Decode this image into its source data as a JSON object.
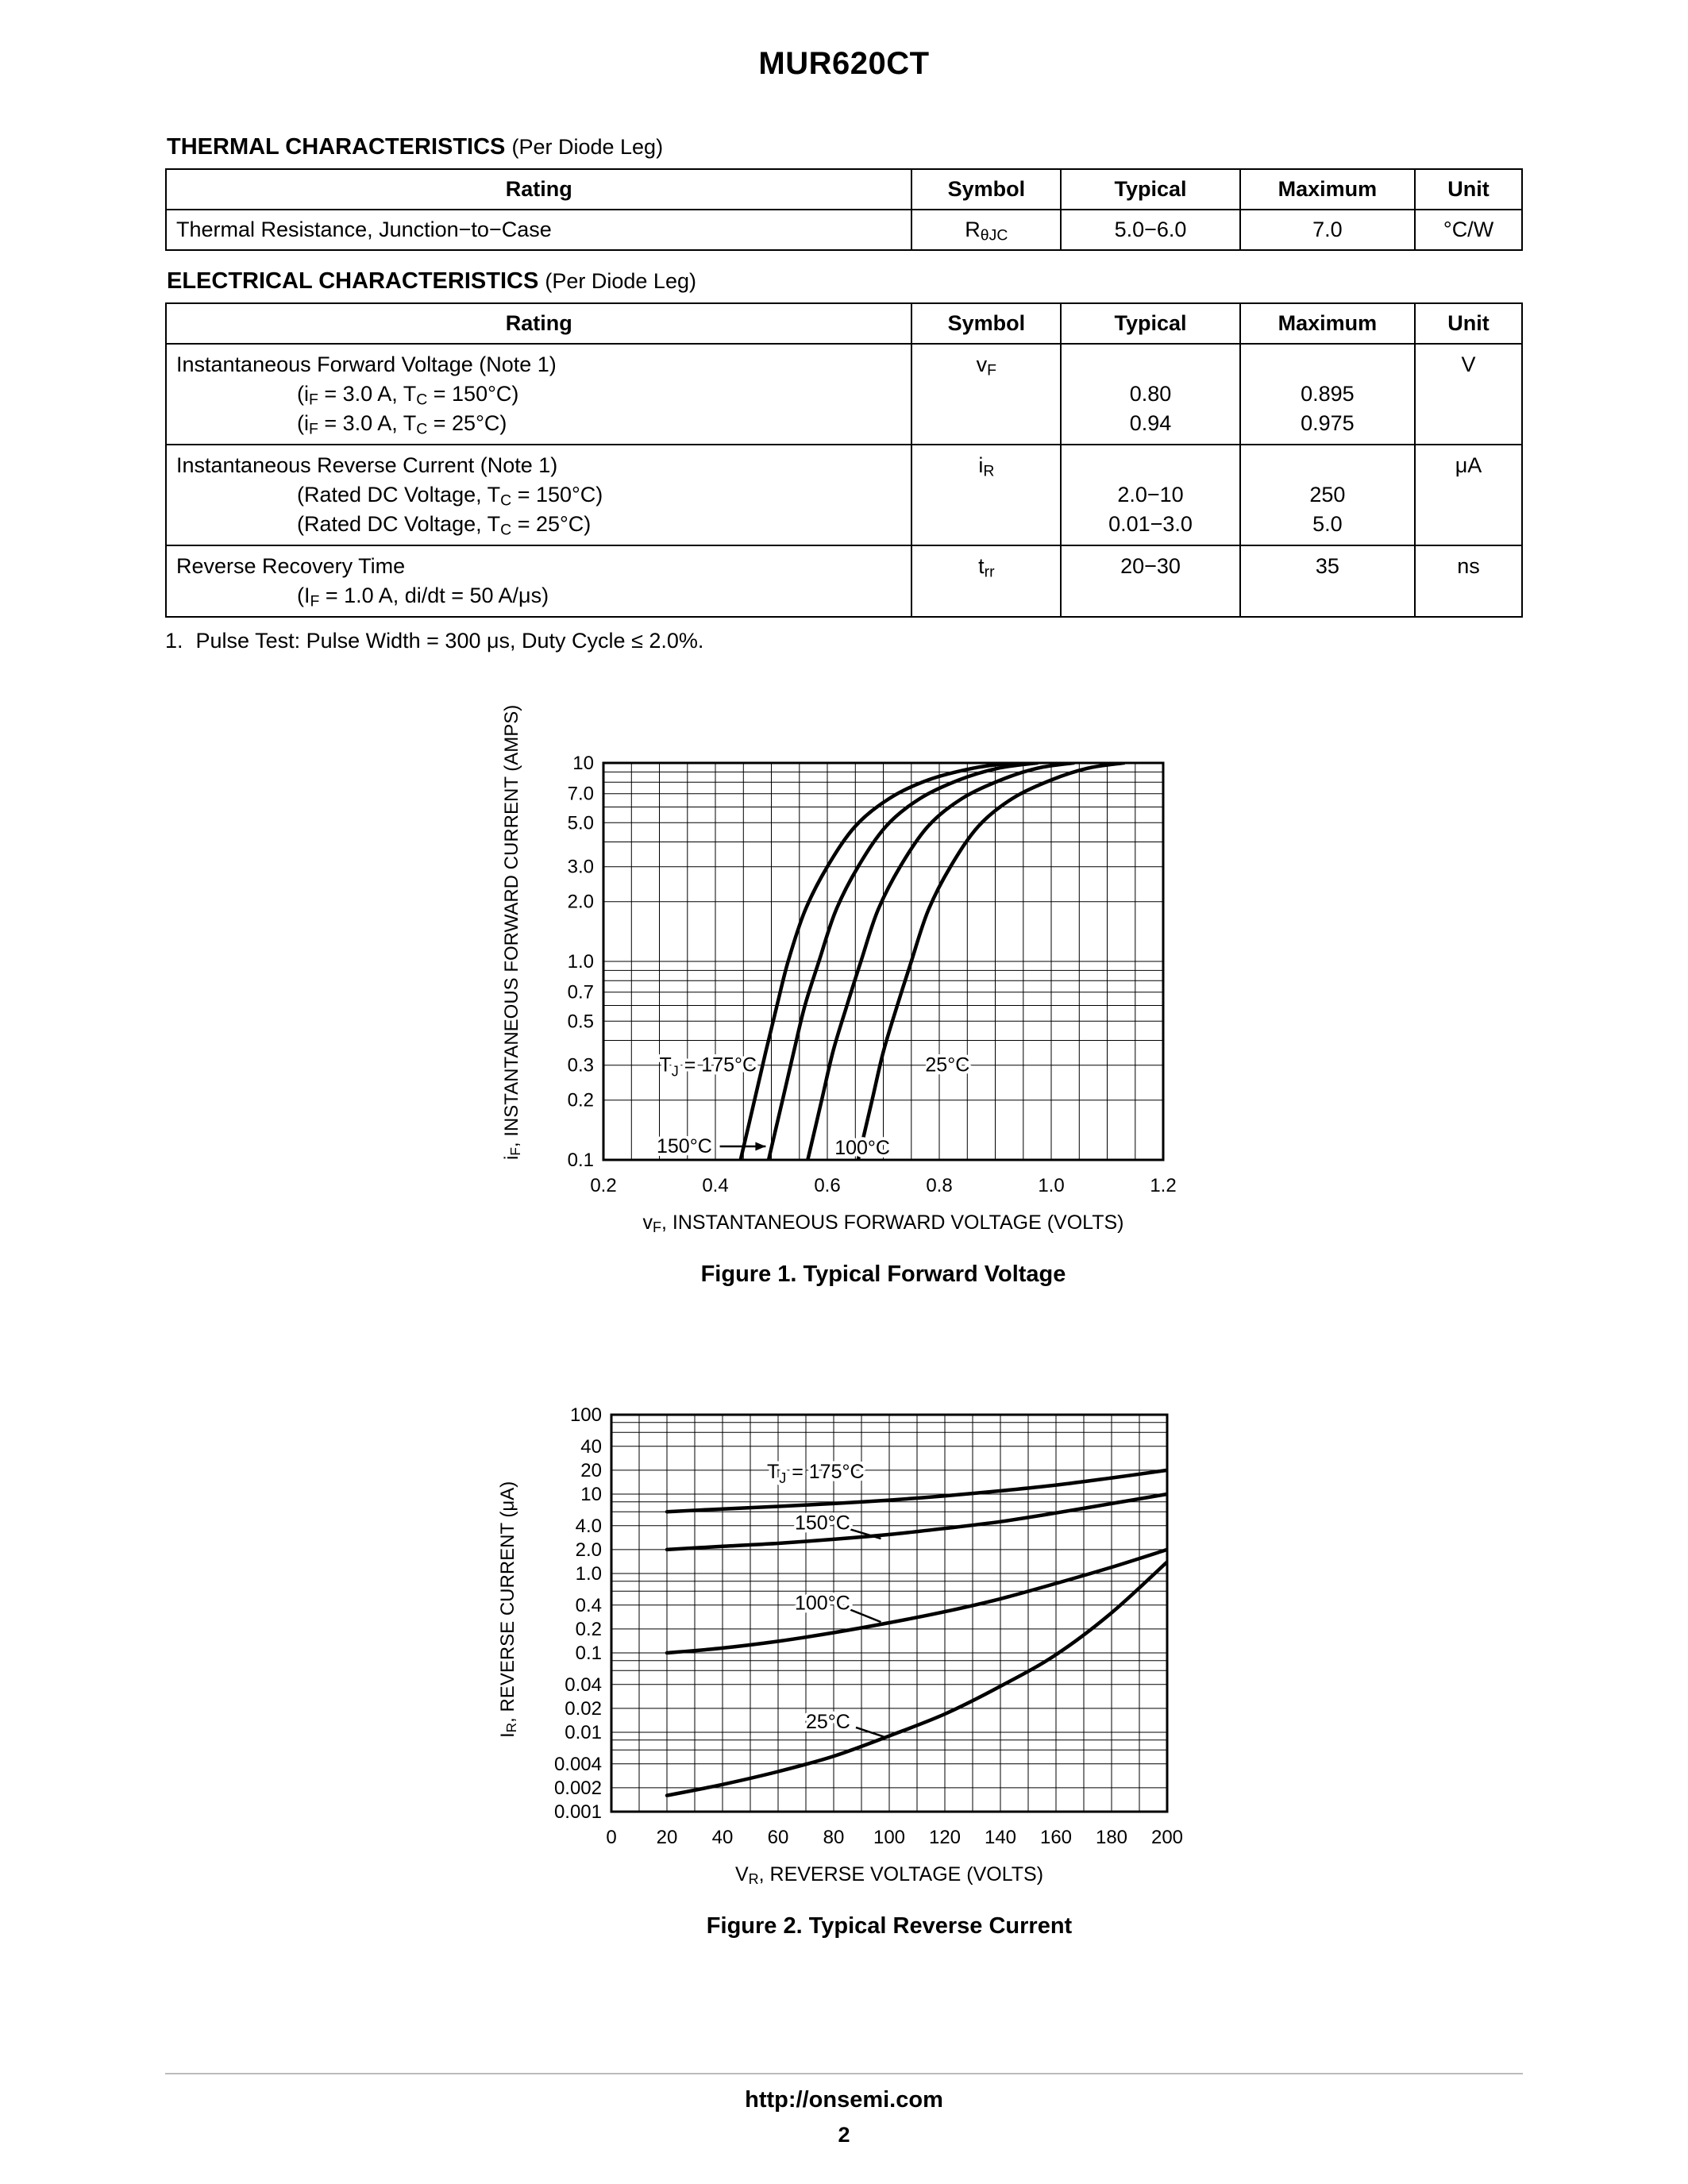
{
  "page": {
    "title": "MUR620CT",
    "footer_url": "http://onsemi.com",
    "page_number": "2"
  },
  "thermal": {
    "heading": "THERMAL CHARACTERISTICS",
    "heading_note": "(Per Diode Leg)",
    "columns": [
      "Rating",
      "Symbol",
      "Typical",
      "Maximum",
      "Unit"
    ],
    "row": {
      "rating": "Thermal Resistance, Junction−to−Case",
      "symbol": "R_{θJC}",
      "typical": "5.0−6.0",
      "maximum": "7.0",
      "unit": "°C/W"
    }
  },
  "electrical": {
    "heading": "ELECTRICAL CHARACTERISTICS",
    "heading_note": "(Per Diode Leg)",
    "columns": [
      "Rating",
      "Symbol",
      "Typical",
      "Maximum",
      "Unit"
    ],
    "rows": [
      {
        "rating_main": "Instantaneous Forward Voltage (Note 1)",
        "rating_sub": [
          "(i_{F} = 3.0 A, T_{C} = 150°C)",
          "(i_{F} = 3.0 A, T_{C} = 25°C)"
        ],
        "symbol": "v_{F}",
        "typical": [
          "",
          "0.80",
          "0.94"
        ],
        "maximum": [
          "",
          "0.895",
          "0.975"
        ],
        "unit": "V"
      },
      {
        "rating_main": "Instantaneous Reverse Current (Note 1)",
        "rating_sub": [
          "(Rated DC Voltage, T_{C} = 150°C)",
          "(Rated DC Voltage, T_{C} = 25°C)"
        ],
        "symbol": "i_{R}",
        "typical": [
          "",
          "2.0−10",
          "0.01−3.0"
        ],
        "maximum": [
          "",
          "250",
          "5.0"
        ],
        "unit": "μA"
      },
      {
        "rating_main": "Reverse Recovery Time",
        "rating_sub": [
          "(I_{F} = 1.0 A, di/dt = 50 A/μs)"
        ],
        "symbol": "t_{rr}",
        "typical": [
          "20−30"
        ],
        "maximum": [
          "35"
        ],
        "unit": "ns"
      }
    ]
  },
  "note": {
    "marker": "1.",
    "text": "Pulse Test: Pulse Width = 300 μs, Duty Cycle ≤ 2.0%."
  },
  "chart_data": [
    {
      "id": "figure-1",
      "type": "line",
      "title": "Figure 1. Typical Forward Voltage",
      "xlabel": "v_{F}, INSTANTANEOUS FORWARD VOLTAGE (VOLTS)",
      "ylabel": "i_{F}, INSTANTANEOUS FORWARD CURRENT (AMPS)",
      "xlim": [
        0.2,
        1.2
      ],
      "ylim": [
        0.1,
        10
      ],
      "xscale": "linear",
      "yscale": "log",
      "grid": true,
      "legend": "inline-annotations",
      "x_minor_step": 0.05,
      "xticks": [
        0.2,
        0.4,
        0.6,
        0.8,
        1.0,
        1.2
      ],
      "xtick_labels": [
        "0.2",
        "0.4",
        "0.6",
        "0.8",
        "1.0",
        "1.2"
      ],
      "ytick_labels": [
        [
          "10",
          10
        ],
        [
          "7.0",
          7.0
        ],
        [
          "5.0",
          5.0
        ],
        [
          "3.0",
          3.0
        ],
        [
          "2.0",
          2.0
        ],
        [
          "1.0",
          1.0
        ],
        [
          "0.7",
          0.7
        ],
        [
          "0.5",
          0.5
        ],
        [
          "0.3",
          0.3
        ],
        [
          "0.2",
          0.2
        ],
        [
          "0.1",
          0.1
        ]
      ],
      "series": [
        {
          "name": "TJ = 175°C",
          "points": [
            [
              0.445,
              0.1
            ],
            [
              0.47,
              0.2
            ],
            [
              0.49,
              0.35
            ],
            [
              0.51,
              0.6
            ],
            [
              0.53,
              1.0
            ],
            [
              0.56,
              1.8
            ],
            [
              0.6,
              3.0
            ],
            [
              0.65,
              4.8
            ],
            [
              0.71,
              6.6
            ],
            [
              0.78,
              8.2
            ],
            [
              0.86,
              9.4
            ],
            [
              0.93,
              10
            ]
          ]
        },
        {
          "name": "150°C",
          "points": [
            [
              0.495,
              0.1
            ],
            [
              0.52,
              0.2
            ],
            [
              0.54,
              0.35
            ],
            [
              0.56,
              0.6
            ],
            [
              0.585,
              1.0
            ],
            [
              0.615,
              1.8
            ],
            [
              0.655,
              3.0
            ],
            [
              0.705,
              4.8
            ],
            [
              0.765,
              6.6
            ],
            [
              0.835,
              8.2
            ],
            [
              0.905,
              9.4
            ],
            [
              0.975,
              10
            ]
          ]
        },
        {
          "name": "100°C",
          "points": [
            [
              0.565,
              0.1
            ],
            [
              0.59,
              0.2
            ],
            [
              0.61,
              0.35
            ],
            [
              0.635,
              0.6
            ],
            [
              0.66,
              1.0
            ],
            [
              0.69,
              1.8
            ],
            [
              0.73,
              3.0
            ],
            [
              0.78,
              4.8
            ],
            [
              0.84,
              6.6
            ],
            [
              0.91,
              8.2
            ],
            [
              0.975,
              9.4
            ],
            [
              1.04,
              10
            ]
          ]
        },
        {
          "name": "25°C",
          "points": [
            [
              0.655,
              0.1
            ],
            [
              0.68,
              0.2
            ],
            [
              0.7,
              0.35
            ],
            [
              0.725,
              0.6
            ],
            [
              0.75,
              1.0
            ],
            [
              0.78,
              1.8
            ],
            [
              0.82,
              3.0
            ],
            [
              0.87,
              4.8
            ],
            [
              0.93,
              6.6
            ],
            [
              1.0,
              8.2
            ],
            [
              1.065,
              9.4
            ],
            [
              1.13,
              10
            ]
          ]
        }
      ],
      "annotations": [
        {
          "text": "T_{J} = 175°C",
          "x": 0.3,
          "y": 0.3
        },
        {
          "text": "150°C",
          "x": 0.295,
          "y": 0.117,
          "line": [
            0.408,
            0.117,
            0.49,
            0.117
          ],
          "arrow": true
        },
        {
          "text": "100°C",
          "x": 0.613,
          "y": 0.115
        },
        {
          "text": "25°C",
          "x": 0.775,
          "y": 0.3
        }
      ]
    },
    {
      "id": "figure-2",
      "type": "line",
      "title": "Figure 2. Typical Reverse Current",
      "xlabel": "V_{R}, REVERSE VOLTAGE (VOLTS)",
      "ylabel": "I_{R}, REVERSE CURRENT (μA)",
      "xlim": [
        0,
        200
      ],
      "ylim": [
        0.001,
        100
      ],
      "xscale": "linear",
      "yscale": "log",
      "grid": true,
      "legend": "inline-annotations",
      "x_minor_step": 10,
      "xticks": [
        0,
        20,
        40,
        60,
        80,
        100,
        120,
        140,
        160,
        180,
        200
      ],
      "xtick_labels": [
        "0",
        "20",
        "40",
        "60",
        "80",
        "100",
        "120",
        "140",
        "160",
        "180",
        "200"
      ],
      "ytick_labels": [
        [
          "100",
          100
        ],
        [
          "40",
          40
        ],
        [
          "20",
          20
        ],
        [
          "10",
          10
        ],
        [
          "4.0",
          4.0
        ],
        [
          "2.0",
          2.0
        ],
        [
          "1.0",
          1.0
        ],
        [
          "0.4",
          0.4
        ],
        [
          "0.2",
          0.2
        ],
        [
          "0.1",
          0.1
        ],
        [
          "0.04",
          0.04
        ],
        [
          "0.02",
          0.02
        ],
        [
          "0.01",
          0.01
        ],
        [
          "0.004",
          0.004
        ],
        [
          "0.002",
          0.002
        ],
        [
          "0.001",
          0.001
        ]
      ],
      "series": [
        {
          "name": "TJ = 175°C",
          "points": [
            [
              20,
              6.0
            ],
            [
              40,
              6.5
            ],
            [
              60,
              7.0
            ],
            [
              80,
              7.6
            ],
            [
              100,
              8.4
            ],
            [
              120,
              9.5
            ],
            [
              140,
              11
            ],
            [
              160,
              13
            ],
            [
              180,
              16
            ],
            [
              200,
              20
            ]
          ]
        },
        {
          "name": "150°C",
          "points": [
            [
              20,
              2.0
            ],
            [
              40,
              2.2
            ],
            [
              60,
              2.4
            ],
            [
              80,
              2.7
            ],
            [
              100,
              3.1
            ],
            [
              120,
              3.7
            ],
            [
              140,
              4.5
            ],
            [
              160,
              5.8
            ],
            [
              180,
              7.6
            ],
            [
              200,
              10
            ]
          ]
        },
        {
          "name": "100°C",
          "points": [
            [
              20,
              0.1
            ],
            [
              40,
              0.115
            ],
            [
              60,
              0.14
            ],
            [
              80,
              0.18
            ],
            [
              100,
              0.24
            ],
            [
              120,
              0.33
            ],
            [
              140,
              0.48
            ],
            [
              160,
              0.75
            ],
            [
              180,
              1.2
            ],
            [
              200,
              2.0
            ]
          ]
        },
        {
          "name": "25°C",
          "points": [
            [
              20,
              0.0016
            ],
            [
              40,
              0.0022
            ],
            [
              60,
              0.0032
            ],
            [
              80,
              0.005
            ],
            [
              100,
              0.009
            ],
            [
              120,
              0.017
            ],
            [
              140,
              0.038
            ],
            [
              160,
              0.095
            ],
            [
              180,
              0.32
            ],
            [
              200,
              1.4
            ]
          ]
        }
      ],
      "annotations": [
        {
          "text": "T_{J} = 175°C",
          "x": 56,
          "y": 19
        },
        {
          "text": "150°C",
          "x": 66,
          "y": 4.3,
          "line": [
            86,
            3.6,
            97,
            2.75
          ]
        },
        {
          "text": "100°C",
          "x": 66,
          "y": 0.42,
          "line": [
            86,
            0.35,
            97,
            0.245
          ]
        },
        {
          "text": "25°C",
          "x": 70,
          "y": 0.0135,
          "line": [
            88,
            0.0115,
            98,
            0.0088
          ]
        }
      ]
    }
  ]
}
